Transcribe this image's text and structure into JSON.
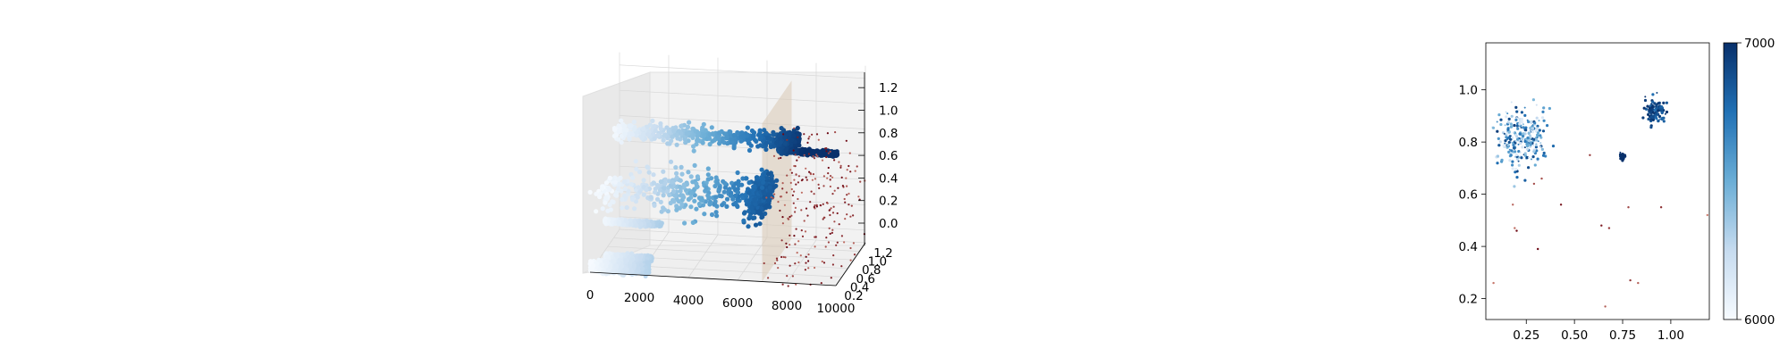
{
  "colors": {
    "colormap_low": "#f7fbff",
    "colormap_high": "#08306b",
    "outlier_light": "#fcbba1",
    "outlier_dark": "#67000d",
    "plane": "#d8c8b4",
    "pane": "#f2f2f2"
  },
  "chart_data": [
    {
      "type": "scatter",
      "projection": "3d",
      "grid": true,
      "x_ticks": [
        "0",
        "2000",
        "4000",
        "6000",
        "8000",
        "10000"
      ],
      "y_ticks": [
        "0.2",
        "0.4",
        "0.6",
        "0.8",
        "1.0",
        "1.2"
      ],
      "z_ticks": [
        "0.0",
        "0.2",
        "0.4",
        "0.6",
        "0.8",
        "1.0",
        "1.2"
      ],
      "xlim": [
        0,
        10000
      ],
      "ylim": [
        0.2,
        1.2
      ],
      "zlim": [
        0.0,
        1.2
      ],
      "plane_x": 7000,
      "series": [
        {
          "x_range": [
            200,
            7400
          ],
          "y": 0.85,
          "z": 0.8,
          "x_dense_from": 6900,
          "x_dense_to": 7700,
          "y_jitter": 0.05,
          "z_jitter": 0.03
        },
        {
          "x_range": [
            0,
            6800
          ],
          "y": 0.55,
          "z": 0.45,
          "x_dense_from": 6200,
          "x_dense_to": 6800,
          "y_jitter": 0.15,
          "z_jitter": 0.06
        },
        {
          "x_range": [
            7000,
            9400
          ],
          "y": 0.75,
          "z": 0.75,
          "x_dense_from": 7000,
          "x_dense_to": 9400,
          "y_jitter": 0.0,
          "z_jitter": 0.0
        },
        {
          "x_range": [
            300,
            2600
          ],
          "y": 0.45,
          "z": 0.22,
          "x_dense_from": 300,
          "x_dense_to": 2600,
          "y_jitter": 0.0,
          "z_jitter": 0.0
        },
        {
          "x_range": [
            500,
            2400
          ],
          "y": 0.3,
          "z": 0.0,
          "x_dense_from": 500,
          "x_dense_to": 2400,
          "y_jitter": 0.0,
          "z_jitter": 0.0
        },
        {
          "x_range": [
            0,
            2400
          ],
          "y": 0.2,
          "z": -0.05,
          "x_dense_from": 0,
          "x_dense_to": 2400,
          "y_jitter": 0.02,
          "z_jitter": 0.02
        }
      ],
      "outliers": {
        "x_range": [
          7000,
          10000
        ],
        "y_range": [
          0.1,
          1.2
        ],
        "z_range": [
          -0.15,
          0.9
        ],
        "count": 220
      }
    },
    {
      "type": "scatter",
      "xlim": [
        0.04,
        1.2
      ],
      "ylim": [
        0.12,
        1.18
      ],
      "x_ticks": [
        "0.25",
        "0.50",
        "0.75",
        "1.00"
      ],
      "x_tick_values": [
        0.25,
        0.5,
        0.75,
        1.0
      ],
      "y_ticks": [
        "0.2",
        "0.4",
        "0.6",
        "0.8",
        "1.0"
      ],
      "y_tick_values": [
        0.2,
        0.4,
        0.6,
        0.8,
        1.0
      ],
      "clusters": [
        {
          "center": [
            0.22,
            0.81
          ],
          "spread": 0.06,
          "count": 260,
          "color_range": [
            0.1,
            0.95
          ]
        },
        {
          "center": [
            0.92,
            0.92
          ],
          "spread": 0.025,
          "count": 90,
          "color_range": [
            0.75,
            1.0
          ]
        },
        {
          "center": [
            0.75,
            0.745
          ],
          "spread": 0.006,
          "count": 40,
          "color_range": [
            1.0,
            1.0
          ]
        }
      ],
      "outliers": [
        [
          0.33,
          0.66
        ],
        [
          0.43,
          0.56
        ],
        [
          0.18,
          0.56
        ],
        [
          0.19,
          0.47
        ],
        [
          0.2,
          0.46
        ],
        [
          0.31,
          0.39
        ],
        [
          0.08,
          0.26
        ],
        [
          0.66,
          0.17
        ],
        [
          0.64,
          0.48
        ],
        [
          0.68,
          0.47
        ],
        [
          0.79,
          0.27
        ],
        [
          0.83,
          0.26
        ],
        [
          0.78,
          0.55
        ],
        [
          0.95,
          0.55
        ],
        [
          1.19,
          0.52
        ],
        [
          0.58,
          0.75
        ],
        [
          0.29,
          0.64
        ]
      ],
      "colorbar": {
        "min": 6000,
        "max": 7000,
        "ticks": [
          "6000",
          "7000"
        ]
      }
    }
  ]
}
